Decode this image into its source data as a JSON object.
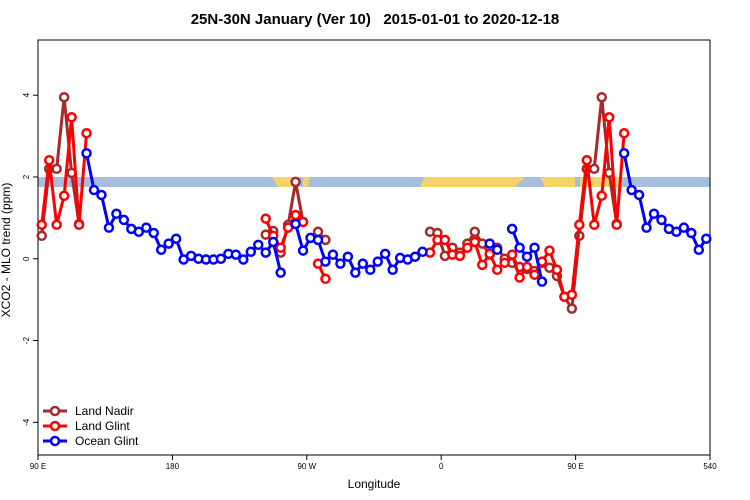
{
  "chart_data": {
    "type": "line",
    "title": "25N-30N January (Ver 10)   2015-01-01 to 2020-12-18",
    "xlabel": "Longitude",
    "ylabel": "XCO2 - MLO trend (ppm)",
    "x": [
      92.5,
      97.5,
      102.5,
      107.5,
      112.5,
      117.5,
      122.5,
      127.5,
      132.5,
      137.5,
      142.5,
      147.5,
      152.5,
      157.5,
      162.5,
      167.5,
      172.5,
      177.5,
      182.5,
      187.5,
      192.5,
      197.5,
      202.5,
      207.5,
      212.5,
      217.5,
      222.5,
      227.5,
      232.5,
      237.5,
      242.5,
      247.5,
      252.5,
      257.5,
      262.5,
      267.5,
      272.5,
      277.5,
      282.5,
      287.5,
      292.5,
      297.5,
      302.5,
      307.5,
      312.5,
      317.5,
      322.5,
      327.5,
      332.5,
      337.5,
      342.5,
      347.5,
      352.5,
      357.5,
      362.5,
      367.5,
      372.5,
      377.5,
      382.5,
      387.5,
      392.5,
      397.5,
      402.5,
      407.5,
      412.5,
      417.5,
      422.5,
      427.5,
      432.5,
      437.5,
      442.5,
      447.5,
      452.5,
      457.5,
      462.5,
      467.5,
      472.5,
      477.5,
      482.5,
      487.5,
      492.5,
      497.5,
      502.5,
      507.5,
      512.5,
      517.5,
      522.5,
      527.5,
      532.5,
      537.5
    ],
    "series": [
      {
        "name": "Land Nadir",
        "color": "#a52a2a",
        "values": [
          0.56,
          2.2,
          2.2,
          3.95,
          2.1,
          0.85,
          null,
          null,
          null,
          null,
          null,
          null,
          null,
          null,
          null,
          null,
          null,
          null,
          null,
          null,
          null,
          null,
          null,
          null,
          null,
          null,
          null,
          null,
          null,
          null,
          0.59,
          0.68,
          0.15,
          0.83,
          1.88,
          0.9,
          null,
          0.66,
          0.46,
          null,
          null,
          null,
          null,
          null,
          null,
          null,
          null,
          null,
          null,
          null,
          null,
          null,
          0.66,
          0.63,
          0.07,
          0.27,
          0.15,
          0.37,
          0.66,
          0.37,
          0.1,
          0.27,
          0.0,
          -0.1,
          -0.2,
          -0.25,
          -0.3,
          -0.1,
          -0.22,
          -0.42,
          -0.93,
          -1.22,
          0.56,
          2.2,
          2.2,
          3.95,
          2.1,
          0.85,
          null,
          null,
          null,
          null,
          null,
          null,
          null,
          null,
          null,
          null,
          null,
          null
        ]
      },
      {
        "name": "Land Glint",
        "color": "#ff0000",
        "values": [
          0.83,
          2.41,
          0.83,
          1.54,
          3.46,
          0.83,
          3.07,
          null,
          null,
          null,
          null,
          null,
          null,
          null,
          null,
          null,
          null,
          null,
          null,
          null,
          null,
          null,
          null,
          null,
          null,
          null,
          null,
          null,
          null,
          null,
          0.98,
          0.56,
          0.27,
          0.76,
          1.07,
          0.9,
          null,
          -0.12,
          -0.49,
          null,
          null,
          null,
          null,
          null,
          null,
          null,
          null,
          null,
          null,
          null,
          null,
          null,
          0.15,
          0.46,
          0.46,
          0.1,
          0.07,
          0.27,
          0.41,
          -0.15,
          0.12,
          -0.27,
          -0.1,
          0.1,
          -0.46,
          -0.2,
          -0.39,
          -0.07,
          0.2,
          -0.27,
          -0.93,
          -0.88,
          0.83,
          2.41,
          0.83,
          1.54,
          3.46,
          0.83,
          3.07,
          null,
          null,
          null,
          null,
          null,
          null,
          null,
          null,
          null,
          null,
          null
        ]
      },
      {
        "name": "Ocean Glint",
        "color": "#0000ff",
        "values": [
          null,
          null,
          null,
          null,
          null,
          null,
          2.58,
          1.68,
          1.56,
          0.76,
          1.1,
          0.95,
          0.73,
          0.66,
          0.76,
          0.63,
          0.22,
          0.37,
          0.49,
          -0.02,
          0.07,
          0.0,
          -0.02,
          -0.02,
          0.0,
          0.12,
          0.1,
          -0.02,
          0.17,
          0.34,
          0.15,
          0.41,
          -0.34,
          null,
          0.85,
          0.2,
          0.51,
          0.46,
          -0.07,
          0.1,
          -0.12,
          0.05,
          -0.34,
          -0.12,
          -0.27,
          -0.07,
          0.12,
          -0.27,
          0.02,
          -0.02,
          0.05,
          0.17,
          null,
          null,
          null,
          null,
          null,
          null,
          null,
          null,
          0.37,
          0.22,
          null,
          0.73,
          0.27,
          0.05,
          0.27,
          -0.56,
          null,
          null,
          null,
          null,
          null,
          null,
          null,
          null,
          null,
          null,
          2.58,
          1.68,
          1.56,
          0.76,
          1.1,
          0.95,
          0.73,
          0.66,
          0.76,
          0.63,
          0.22,
          0.49
        ]
      }
    ],
    "xlim": [
      90,
      540
    ],
    "xticks": [
      {
        "value": 90,
        "label": "90 E"
      },
      180,
      {
        "value": 270,
        "label": "90 W"
      },
      {
        "value": 360,
        "label": "0"
      },
      {
        "value": 450,
        "label": "90 E"
      },
      540
    ],
    "ylim": [
      -4.8,
      5.35
    ],
    "yticks": [
      -4,
      -2,
      0,
      2,
      4
    ],
    "legend": "bottomleft"
  }
}
